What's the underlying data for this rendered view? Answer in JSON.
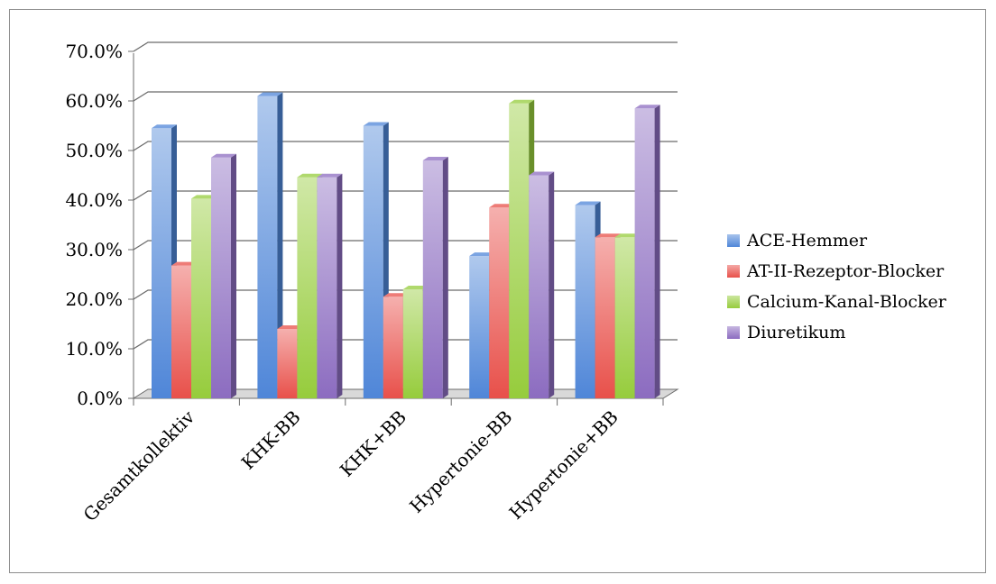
{
  "chart_data": {
    "type": "bar",
    "style": "3d-clustered-column",
    "categories": [
      "Gesamtkollektiv",
      "KHK-BB",
      "KHK+BB",
      "Hypertonie-BB",
      "Hypertonie+BB"
    ],
    "series": [
      {
        "name": "ACE-Hemmer",
        "values": [
          54.5,
          61.0,
          55.0,
          28.7,
          39.0
        ],
        "color": "#4f86d8"
      },
      {
        "name": "AT-II-Rezeptor-Blocker",
        "values": [
          26.8,
          14.0,
          20.5,
          38.5,
          32.5
        ],
        "color": "#e8504a"
      },
      {
        "name": "Calcium-Kanal-Blocker",
        "values": [
          40.3,
          44.6,
          22.0,
          59.5,
          32.5
        ],
        "color": "#96cc3c"
      },
      {
        "name": "Diuretikum",
        "values": [
          48.6,
          44.6,
          48.0,
          45.0,
          58.5
        ],
        "color": "#8c6cc0"
      }
    ],
    "yticks": [
      "0.0%",
      "10.0%",
      "20.0%",
      "30.0%",
      "40.0%",
      "50.0%",
      "60.0%",
      "70.0%"
    ],
    "ylim": [
      0,
      70
    ],
    "grid": true,
    "legend_position": "right",
    "title": "",
    "xlabel": "",
    "ylabel": ""
  }
}
